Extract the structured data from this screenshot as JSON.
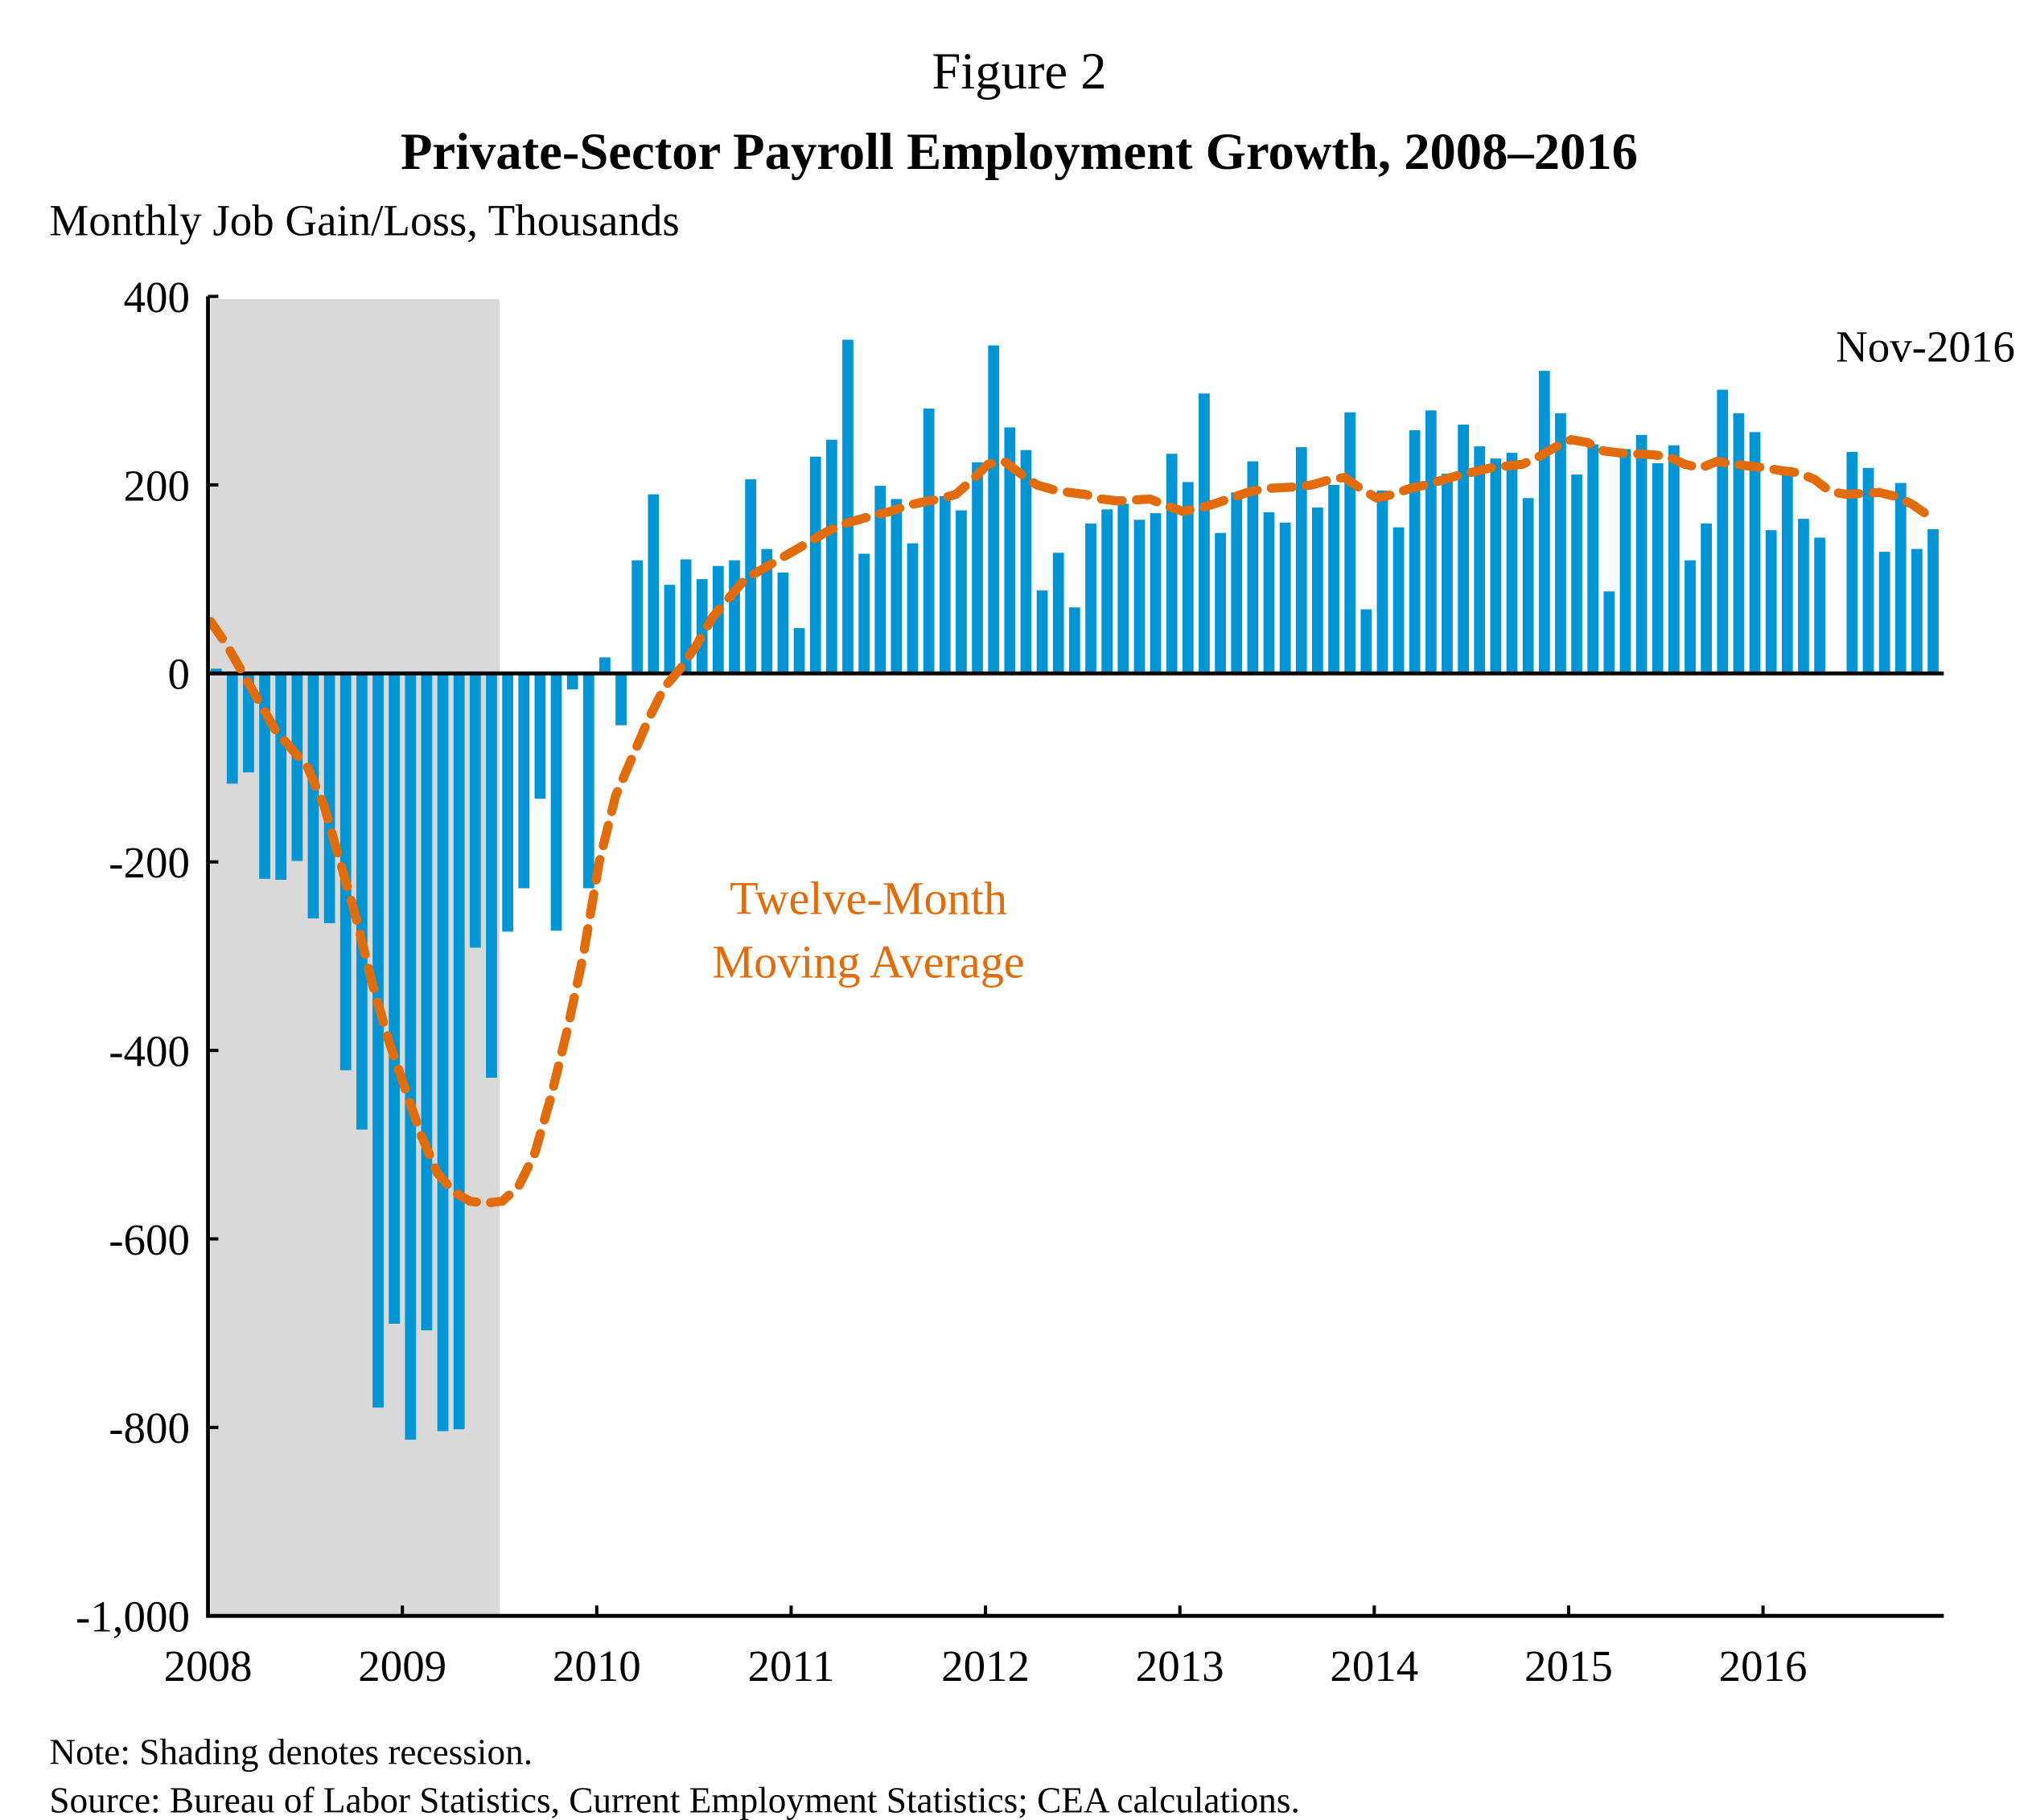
{
  "figure_label": "Figure 2",
  "notes": {
    "note": "Note: Shading denotes recession.",
    "source": "Source: Bureau of Labor Statistics, Current Employment Statistics; CEA calculations."
  },
  "chart_data": {
    "type": "bar",
    "title": "Private-Sector Payroll Employment Growth, 2008–2016",
    "ylabel": "Monthly Job Gain/Loss, Thousands",
    "xlabel": "",
    "ylim": [
      -1000,
      400
    ],
    "yticks": [
      400,
      200,
      0,
      -200,
      -400,
      -600,
      -800,
      -1000
    ],
    "ytick_labels": [
      "400",
      "200",
      "0",
      "-200",
      "-400",
      "-600",
      "-800",
      "-1,000"
    ],
    "xticks": [
      "2008",
      "2009",
      "2010",
      "2011",
      "2012",
      "2013",
      "2014",
      "2015",
      "2016"
    ],
    "start_month": "2008-01",
    "end_label": "Nov-2016",
    "grid": false,
    "recession": {
      "start": "2008-01",
      "end": "2009-06"
    },
    "colors": {
      "bars": "#0096D6",
      "moving_average": "#E36C0A",
      "recession": "#D9D9D9"
    },
    "series": [
      {
        "name": "Monthly Job Gain/Loss",
        "type": "bar",
        "values": [
          5,
          -117,
          -105,
          -218,
          -219,
          -199,
          -260,
          -265,
          -421,
          -484,
          -779,
          -690,
          -813,
          -697,
          -804,
          -802,
          -291,
          -429,
          -274,
          -228,
          -133,
          -273,
          -17,
          -228,
          17,
          -55,
          120,
          190,
          94,
          121,
          100,
          114,
          120,
          206,
          132,
          107,
          48,
          230,
          248,
          354,
          127,
          199,
          185,
          138,
          281,
          188,
          173,
          224,
          348,
          261,
          237,
          88,
          128,
          70,
          159,
          174,
          180,
          163,
          170,
          233,
          203,
          297,
          149,
          192,
          225,
          171,
          160,
          240,
          176,
          200,
          277,
          68,
          194,
          155,
          258,
          279,
          212,
          264,
          241,
          228,
          234,
          186,
          321,
          276,
          211,
          243,
          87,
          238,
          253,
          223,
          242,
          120,
          159,
          301,
          276,
          256,
          152,
          219,
          164,
          144,
          0,
          235,
          218,
          129,
          202,
          132,
          153
        ]
      },
      {
        "name": "Twelve-Month Moving Average",
        "type": "line",
        "label_lines": [
          "Twelve-Month",
          "Moving Average"
        ],
        "values": [
          55,
          30,
          0,
          -30,
          -60,
          -80,
          -100,
          -140,
          -200,
          -260,
          -330,
          -390,
          -440,
          -490,
          -530,
          -550,
          -560,
          -562,
          -560,
          -545,
          -510,
          -450,
          -380,
          -300,
          -200,
          -130,
          -90,
          -50,
          -15,
          5,
          30,
          60,
          80,
          100,
          110,
          120,
          130,
          140,
          150,
          158,
          163,
          168,
          172,
          178,
          182,
          185,
          190,
          205,
          222,
          225,
          212,
          200,
          195,
          192,
          190,
          185,
          183,
          184,
          185,
          178,
          172,
          175,
          180,
          186,
          192,
          196,
          197,
          198,
          200,
          205,
          208,
          196,
          186,
          190,
          196,
          200,
          205,
          210,
          214,
          218,
          220,
          222,
          230,
          240,
          248,
          245,
          236,
          234,
          233,
          232,
          230,
          222,
          218,
          225,
          222,
          220,
          218,
          215,
          213,
          206,
          193,
          190,
          191,
          192,
          188,
          180,
          168
        ]
      }
    ]
  }
}
